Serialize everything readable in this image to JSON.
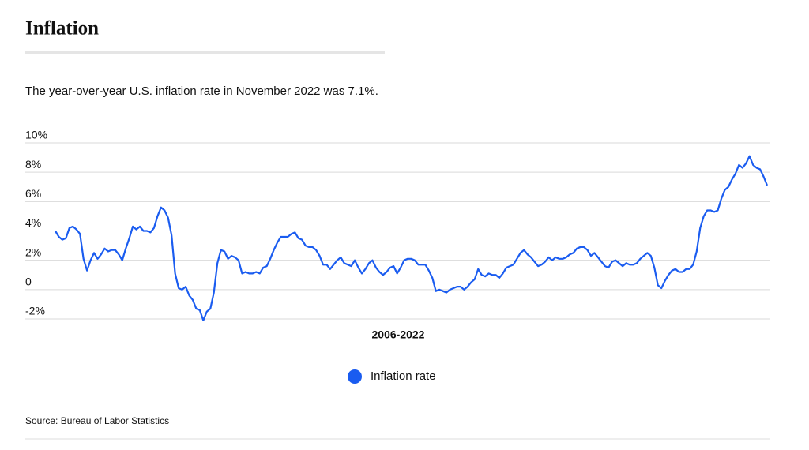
{
  "chart_data": {
    "type": "line",
    "title": "Inflation",
    "subtitle": "The year-over-year U.S. inflation rate in November 2022 was 7.1%.",
    "x_label": "2006-2022",
    "source": "Source: Bureau of Labor Statistics",
    "series": [
      {
        "name": "Inflation rate",
        "color": "#1a5cf0",
        "values": [
          4.0,
          3.6,
          3.4,
          3.5,
          4.2,
          4.3,
          4.1,
          3.8,
          2.1,
          1.3,
          2.0,
          2.5,
          2.1,
          2.4,
          2.8,
          2.6,
          2.7,
          2.7,
          2.4,
          2.0,
          2.8,
          3.5,
          4.3,
          4.1,
          4.3,
          4.0,
          4.0,
          3.9,
          4.2,
          5.0,
          5.6,
          5.4,
          4.9,
          3.7,
          1.1,
          0.1,
          0.0,
          0.2,
          -0.4,
          -0.7,
          -1.3,
          -1.4,
          -2.1,
          -1.5,
          -1.3,
          -0.2,
          1.8,
          2.7,
          2.6,
          2.1,
          2.3,
          2.2,
          2.0,
          1.1,
          1.2,
          1.1,
          1.1,
          1.2,
          1.1,
          1.5,
          1.6,
          2.1,
          2.7,
          3.2,
          3.6,
          3.6,
          3.6,
          3.8,
          3.9,
          3.5,
          3.4,
          3.0,
          2.9,
          2.9,
          2.7,
          2.3,
          1.7,
          1.7,
          1.4,
          1.7,
          2.0,
          2.2,
          1.8,
          1.7,
          1.6,
          2.0,
          1.5,
          1.1,
          1.4,
          1.8,
          2.0,
          1.5,
          1.2,
          1.0,
          1.2,
          1.5,
          1.6,
          1.1,
          1.5,
          2.0,
          2.1,
          2.1,
          2.0,
          1.7,
          1.7,
          1.7,
          1.3,
          0.8,
          -0.1,
          0.0,
          -0.1,
          -0.2,
          0.0,
          0.1,
          0.2,
          0.2,
          0.0,
          0.2,
          0.5,
          0.7,
          1.4,
          1.0,
          0.9,
          1.1,
          1.0,
          1.0,
          0.8,
          1.1,
          1.5,
          1.6,
          1.7,
          2.1,
          2.5,
          2.7,
          2.4,
          2.2,
          1.9,
          1.6,
          1.7,
          1.9,
          2.2,
          2.0,
          2.2,
          2.1,
          2.1,
          2.2,
          2.4,
          2.5,
          2.8,
          2.9,
          2.9,
          2.7,
          2.3,
          2.5,
          2.2,
          1.9,
          1.6,
          1.5,
          1.9,
          2.0,
          1.8,
          1.6,
          1.8,
          1.7,
          1.7,
          1.8,
          2.1,
          2.3,
          2.5,
          2.3,
          1.5,
          0.3,
          0.1,
          0.6,
          1.0,
          1.3,
          1.4,
          1.2,
          1.2,
          1.4,
          1.4,
          1.7,
          2.6,
          4.2,
          5.0,
          5.4,
          5.4,
          5.3,
          5.4,
          6.2,
          6.8,
          7.0,
          7.5,
          7.9,
          8.5,
          8.3,
          8.6,
          9.1,
          8.5,
          8.3,
          8.2,
          7.7,
          7.1
        ]
      }
    ],
    "ylim": [
      -2,
      10
    ],
    "yticks": [
      {
        "value": -2,
        "label": "-2%"
      },
      0,
      {
        "value": 2,
        "label": "2%"
      },
      {
        "value": 4,
        "label": "4%"
      },
      {
        "value": 6,
        "label": "6%"
      },
      {
        "value": 8,
        "label": "8%"
      },
      {
        "value": 10,
        "label": "10%"
      }
    ],
    "grid": true
  }
}
